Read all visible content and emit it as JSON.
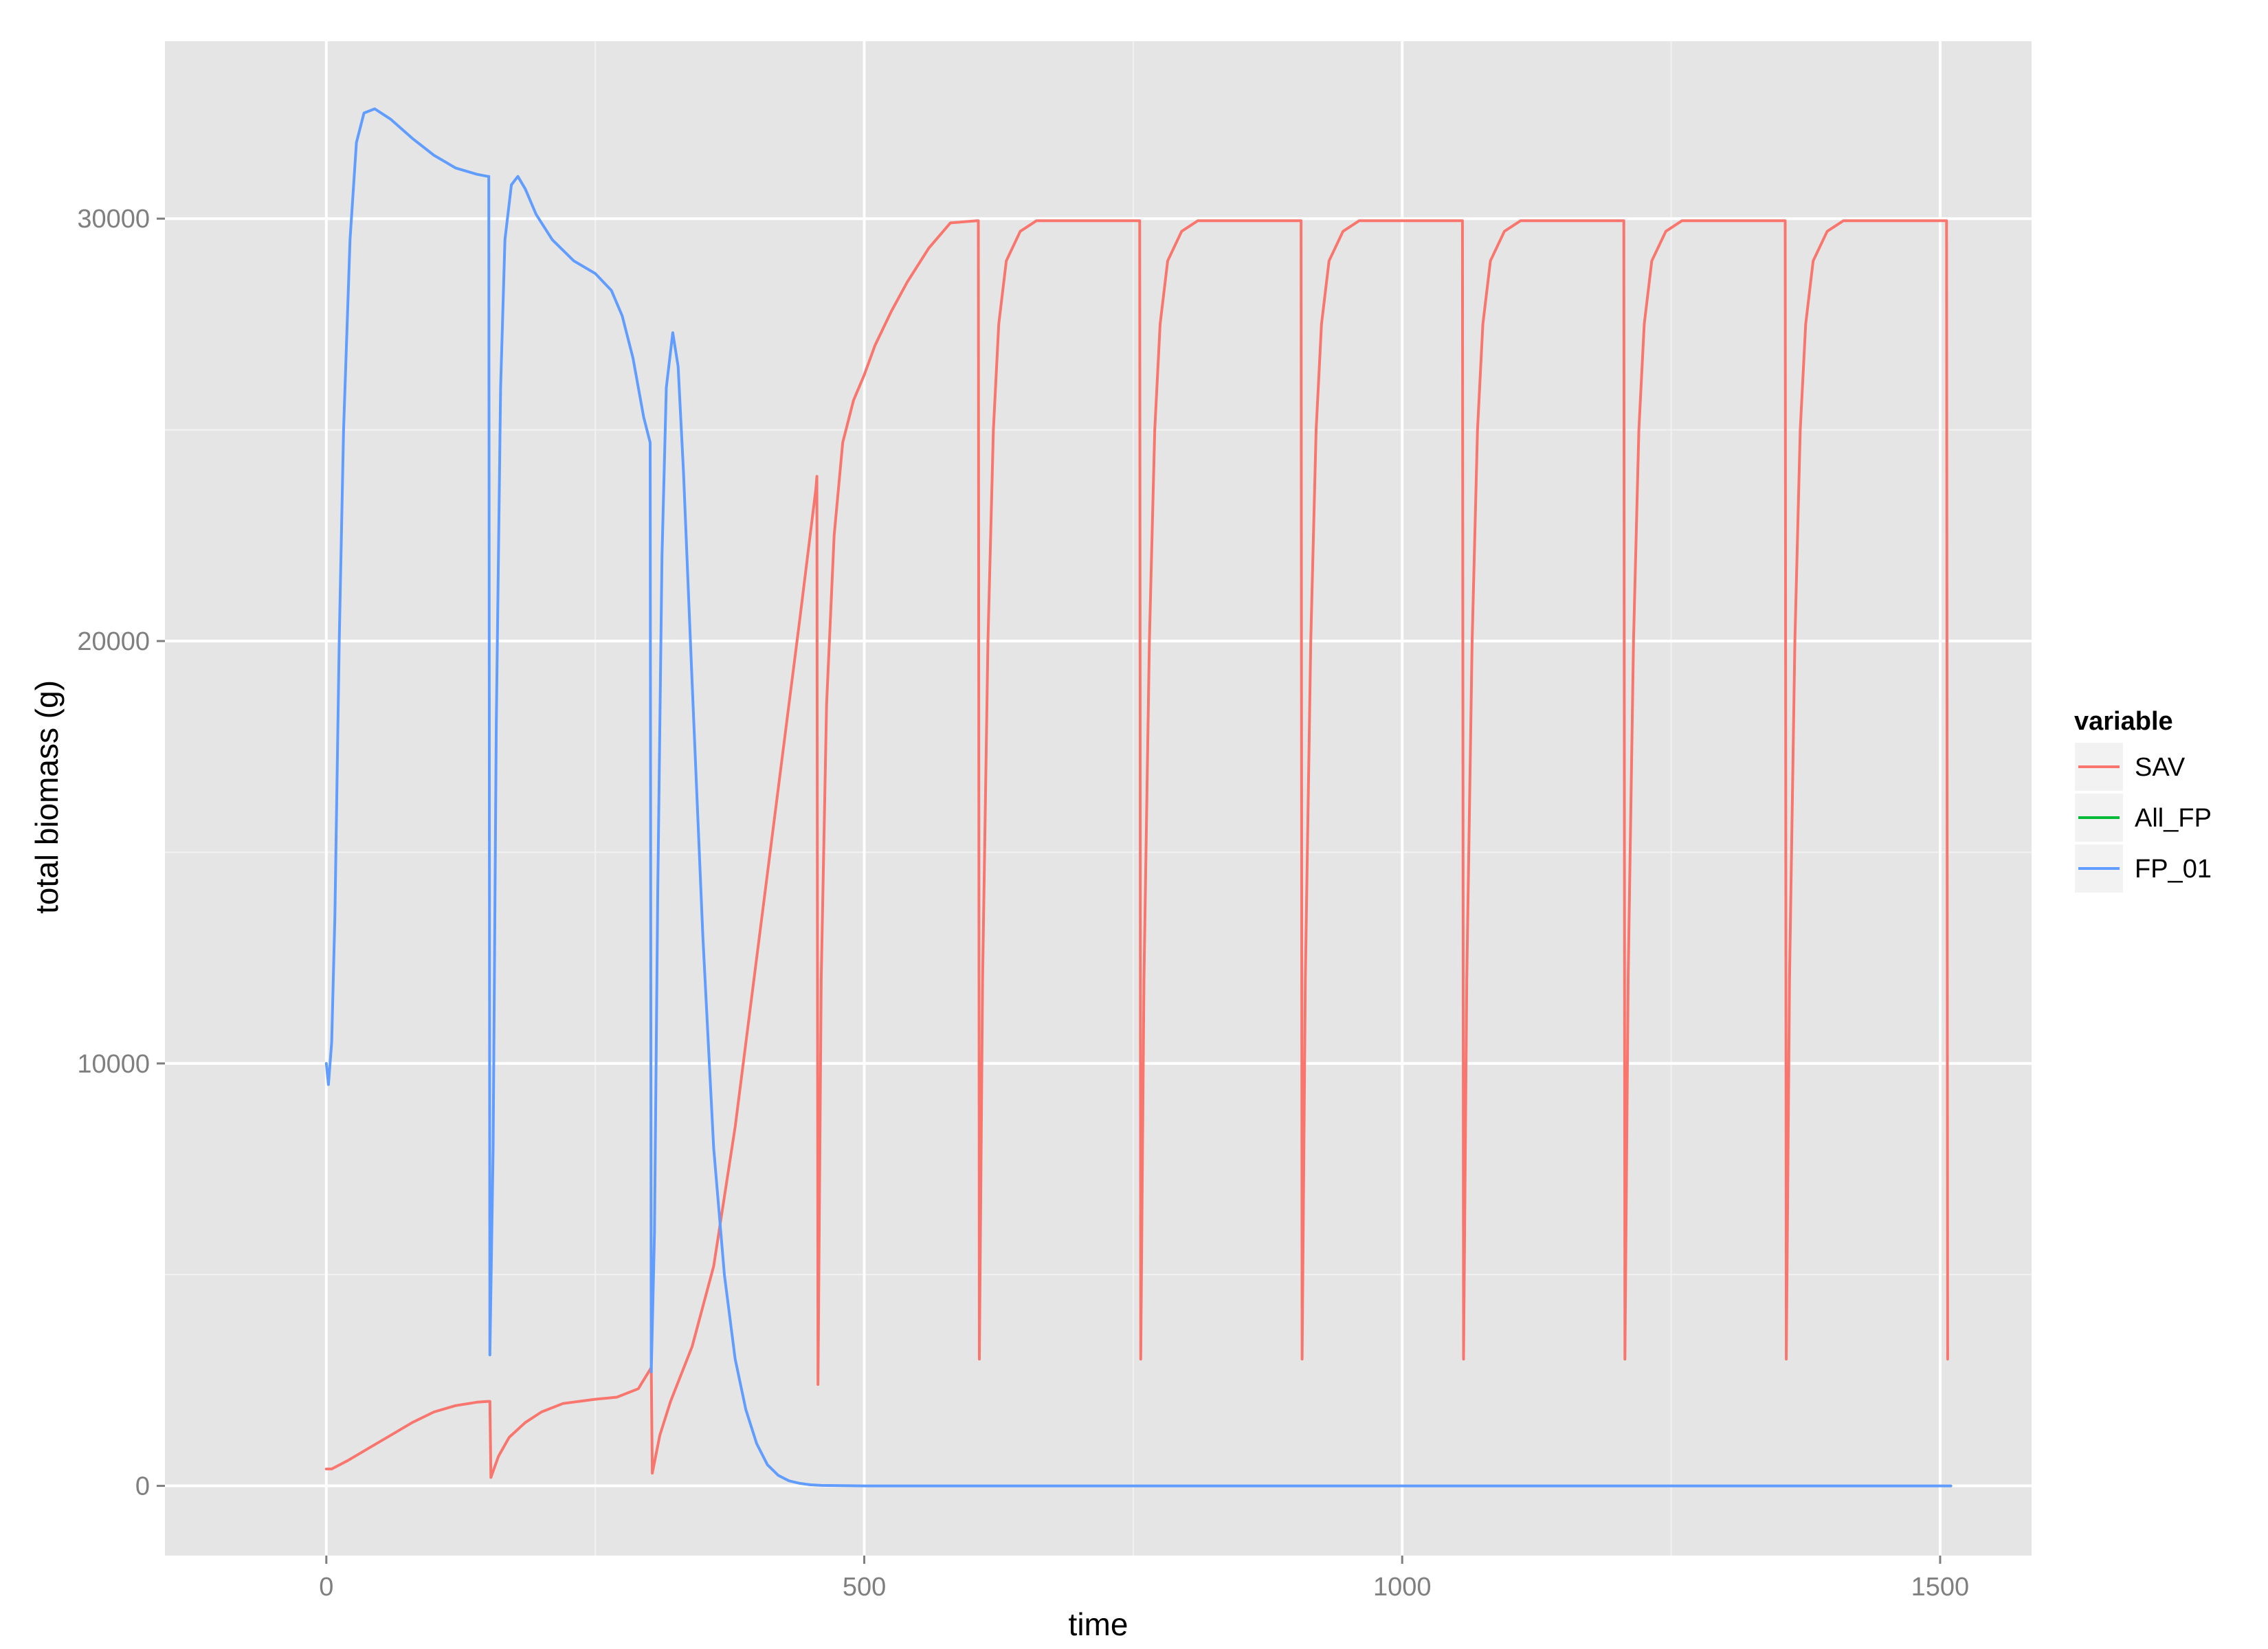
{
  "chart_data": {
    "type": "line",
    "title": "",
    "xlabel": "time",
    "ylabel": "total biomass (g)",
    "xlim": [
      -150,
      1585
    ],
    "ylim": [
      -1650,
      34200
    ],
    "x_ticks": [
      0,
      500,
      1000,
      1500
    ],
    "x_minor": [
      250,
      750,
      1250
    ],
    "y_ticks": [
      0,
      10000,
      20000,
      30000
    ],
    "y_minor": [
      5000,
      15000,
      25000
    ],
    "x_tick_labels": [
      "0",
      "500",
      "1000",
      "1500"
    ],
    "y_tick_labels": [
      "0",
      "10000",
      "20000",
      "30000"
    ],
    "grid": true,
    "legend": {
      "title": "variable",
      "position": "right",
      "entries": [
        "SAV",
        "All_FP",
        "FP_01"
      ]
    },
    "series": [
      {
        "name": "SAV",
        "color": "#F8766D",
        "points": [
          [
            0,
            400
          ],
          [
            5,
            400
          ],
          [
            20,
            600
          ],
          [
            40,
            900
          ],
          [
            60,
            1200
          ],
          [
            80,
            1500
          ],
          [
            100,
            1750
          ],
          [
            120,
            1900
          ],
          [
            140,
            1980
          ],
          [
            150,
            2000
          ],
          [
            152,
            2000
          ],
          [
            153,
            200
          ],
          [
            160,
            700
          ],
          [
            170,
            1150
          ],
          [
            185,
            1500
          ],
          [
            200,
            1750
          ],
          [
            220,
            1950
          ],
          [
            250,
            2050
          ],
          [
            270,
            2100
          ],
          [
            290,
            2300
          ],
          [
            302,
            2800
          ],
          [
            303,
            300
          ],
          [
            310,
            1200
          ],
          [
            320,
            2000
          ],
          [
            340,
            3300
          ],
          [
            360,
            5200
          ],
          [
            380,
            8500
          ],
          [
            400,
            12500
          ],
          [
            420,
            16500
          ],
          [
            440,
            20500
          ],
          [
            455,
            23600
          ],
          [
            456,
            23900
          ],
          [
            457,
            2400
          ],
          [
            460,
            12000
          ],
          [
            465,
            18500
          ],
          [
            472,
            22500
          ],
          [
            480,
            24700
          ],
          [
            490,
            25700
          ],
          [
            500,
            26300
          ],
          [
            510,
            27000
          ],
          [
            525,
            27800
          ],
          [
            540,
            28500
          ],
          [
            560,
            29300
          ],
          [
            580,
            29900
          ],
          [
            605,
            29950
          ],
          [
            606,
            29950
          ],
          [
            607,
            3000
          ],
          [
            610,
            12000
          ],
          [
            615,
            20000
          ],
          [
            620,
            25000
          ],
          [
            625,
            27500
          ],
          [
            632,
            29000
          ],
          [
            645,
            29700
          ],
          [
            660,
            29950
          ],
          [
            755,
            29950
          ],
          [
            756,
            29950
          ],
          [
            757,
            3000
          ],
          [
            760,
            12000
          ],
          [
            765,
            20000
          ],
          [
            770,
            25000
          ],
          [
            775,
            27500
          ],
          [
            782,
            29000
          ],
          [
            795,
            29700
          ],
          [
            810,
            29950
          ],
          [
            905,
            29950
          ],
          [
            906,
            29950
          ],
          [
            907,
            3000
          ],
          [
            910,
            12000
          ],
          [
            915,
            20000
          ],
          [
            920,
            25000
          ],
          [
            925,
            27500
          ],
          [
            932,
            29000
          ],
          [
            945,
            29700
          ],
          [
            960,
            29950
          ],
          [
            1055,
            29950
          ],
          [
            1056,
            29950
          ],
          [
            1057,
            3000
          ],
          [
            1060,
            12000
          ],
          [
            1065,
            20000
          ],
          [
            1070,
            25000
          ],
          [
            1075,
            27500
          ],
          [
            1082,
            29000
          ],
          [
            1095,
            29700
          ],
          [
            1110,
            29950
          ],
          [
            1205,
            29950
          ],
          [
            1206,
            29950
          ],
          [
            1207,
            3000
          ],
          [
            1210,
            12000
          ],
          [
            1215,
            20000
          ],
          [
            1220,
            25000
          ],
          [
            1225,
            27500
          ],
          [
            1232,
            29000
          ],
          [
            1245,
            29700
          ],
          [
            1260,
            29950
          ],
          [
            1355,
            29950
          ],
          [
            1356,
            29950
          ],
          [
            1357,
            3000
          ],
          [
            1360,
            12000
          ],
          [
            1365,
            20000
          ],
          [
            1370,
            25000
          ],
          [
            1375,
            27500
          ],
          [
            1382,
            29000
          ],
          [
            1395,
            29700
          ],
          [
            1410,
            29950
          ],
          [
            1505,
            29950
          ],
          [
            1506,
            29950
          ],
          [
            1507,
            3000
          ]
        ]
      },
      {
        "name": "All_FP",
        "color": "#00BA38",
        "points": []
      },
      {
        "name": "FP_01",
        "color": "#619CFF",
        "points": [
          [
            0,
            10000
          ],
          [
            2,
            9500
          ],
          [
            5,
            10500
          ],
          [
            8,
            13500
          ],
          [
            12,
            20000
          ],
          [
            16,
            25000
          ],
          [
            22,
            29500
          ],
          [
            28,
            31800
          ],
          [
            35,
            32500
          ],
          [
            45,
            32600
          ],
          [
            60,
            32350
          ],
          [
            80,
            31900
          ],
          [
            100,
            31500
          ],
          [
            120,
            31200
          ],
          [
            140,
            31050
          ],
          [
            150,
            31000
          ],
          [
            151,
            31000
          ],
          [
            152,
            3100
          ],
          [
            155,
            8000
          ],
          [
            158,
            18000
          ],
          [
            162,
            26000
          ],
          [
            166,
            29500
          ],
          [
            172,
            30800
          ],
          [
            178,
            31000
          ],
          [
            185,
            30700
          ],
          [
            195,
            30100
          ],
          [
            210,
            29500
          ],
          [
            230,
            29000
          ],
          [
            250,
            28700
          ],
          [
            265,
            28300
          ],
          [
            275,
            27700
          ],
          [
            285,
            26700
          ],
          [
            295,
            25300
          ],
          [
            300,
            24800
          ],
          [
            301,
            24700
          ],
          [
            302,
            2700
          ],
          [
            305,
            6000
          ],
          [
            308,
            14000
          ],
          [
            312,
            22000
          ],
          [
            316,
            26000
          ],
          [
            322,
            27300
          ],
          [
            327,
            26500
          ],
          [
            332,
            24000
          ],
          [
            340,
            19000
          ],
          [
            350,
            13000
          ],
          [
            360,
            8000
          ],
          [
            370,
            5000
          ],
          [
            380,
            3000
          ],
          [
            390,
            1800
          ],
          [
            400,
            1000
          ],
          [
            410,
            500
          ],
          [
            420,
            250
          ],
          [
            430,
            120
          ],
          [
            440,
            60
          ],
          [
            450,
            25
          ],
          [
            460,
            10
          ],
          [
            480,
            5
          ],
          [
            500,
            0
          ],
          [
            1510,
            0
          ]
        ]
      }
    ]
  }
}
